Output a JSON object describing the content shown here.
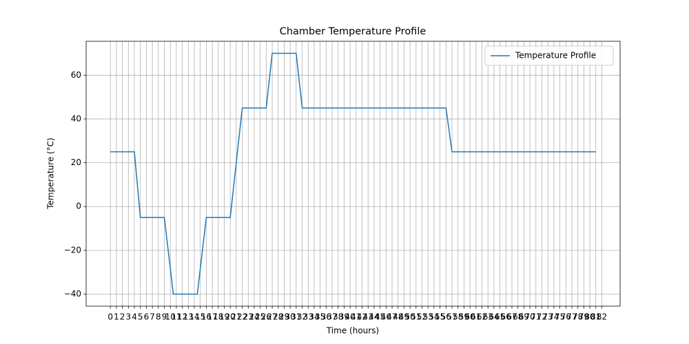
{
  "chart_data": {
    "type": "line",
    "title": "Chamber Temperature Profile",
    "xlabel": "Time (hours)",
    "ylabel": "Temperature (°C)",
    "x": [
      0,
      4,
      5,
      9,
      10.5,
      14.5,
      16,
      20,
      22,
      26,
      27,
      31,
      32,
      56,
      57,
      81
    ],
    "series": [
      {
        "name": "Temperature Profile",
        "color": "#1f77b4",
        "values": [
          25,
          25,
          -5,
          -5,
          -40,
          -40,
          -5,
          -5,
          45,
          45,
          70,
          70,
          45,
          45,
          25,
          25
        ]
      }
    ],
    "xlim": [
      -4.05,
      85.05
    ],
    "xticks": [
      0,
      1,
      2,
      3,
      4,
      5,
      6,
      7,
      8,
      9,
      10,
      11,
      12,
      13,
      14,
      15,
      16,
      17,
      18,
      19,
      20,
      21,
      22,
      23,
      24,
      25,
      26,
      27,
      28,
      29,
      30,
      31,
      32,
      33,
      34,
      35,
      36,
      37,
      38,
      39,
      40,
      41,
      42,
      43,
      44,
      45,
      46,
      47,
      48,
      49,
      50,
      51,
      52,
      53,
      54,
      55,
      56,
      57,
      58,
      59,
      60,
      61,
      62,
      63,
      64,
      65,
      66,
      67,
      68,
      69,
      70,
      71,
      72,
      73,
      74,
      75,
      76,
      77,
      78,
      79,
      80,
      81,
      82
    ],
    "ylim": [
      -45.5,
      75.5
    ],
    "yticks": [
      {
        "value": -40,
        "label": "−40"
      },
      {
        "value": -20,
        "label": "−20"
      },
      0,
      20,
      40,
      60
    ],
    "grid": true,
    "legend": "upper right"
  }
}
